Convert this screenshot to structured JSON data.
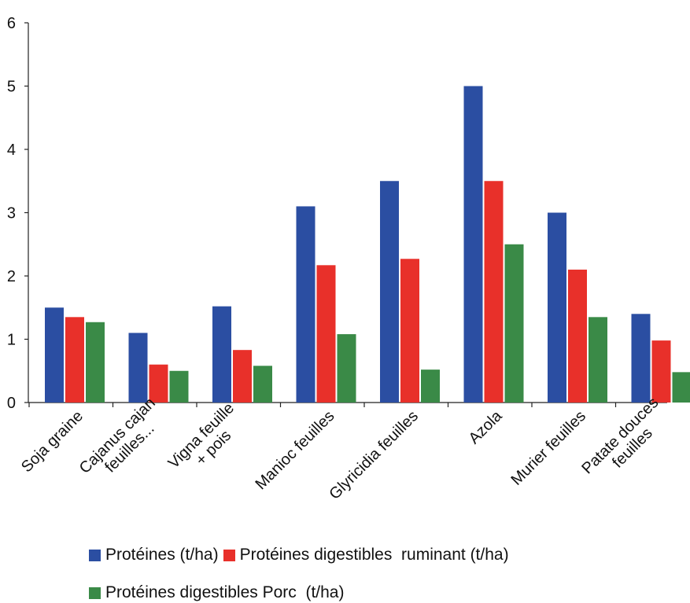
{
  "chart_data": {
    "type": "bar",
    "title": "",
    "xlabel": "",
    "ylabel": "",
    "ylim": [
      0,
      6
    ],
    "yticks": [
      "0",
      "1",
      "2",
      "3",
      "4",
      "5",
      "6"
    ],
    "categories": [
      [
        "Soja graine"
      ],
      [
        "Cajanus cajan",
        "feuilles..."
      ],
      [
        "Vigna feuille",
        "+ pois"
      ],
      [
        "Manioc feuilles"
      ],
      [
        "Glyricidia feuilles"
      ],
      [
        "Azola"
      ],
      [
        "Murier feuilles"
      ],
      [
        "Patate douces",
        "feuilles"
      ]
    ],
    "series": [
      {
        "name": "Protéines (t/ha)",
        "color": "#2B4EA2",
        "values": [
          1.5,
          1.1,
          1.52,
          3.1,
          3.5,
          5.0,
          3.0,
          1.4
        ]
      },
      {
        "name": "Protéines digestibles  ruminant (t/ha)",
        "color": "#E8302A",
        "values": [
          1.35,
          0.6,
          0.83,
          2.17,
          2.27,
          3.5,
          2.1,
          0.98
        ]
      },
      {
        "name": "Protéines digestibles Porc  (t/ha)",
        "color": "#3A8A47",
        "values": [
          1.27,
          0.5,
          0.58,
          1.08,
          0.52,
          2.5,
          1.35,
          0.48
        ]
      }
    ],
    "grid": false,
    "legend_position": "bottom"
  }
}
